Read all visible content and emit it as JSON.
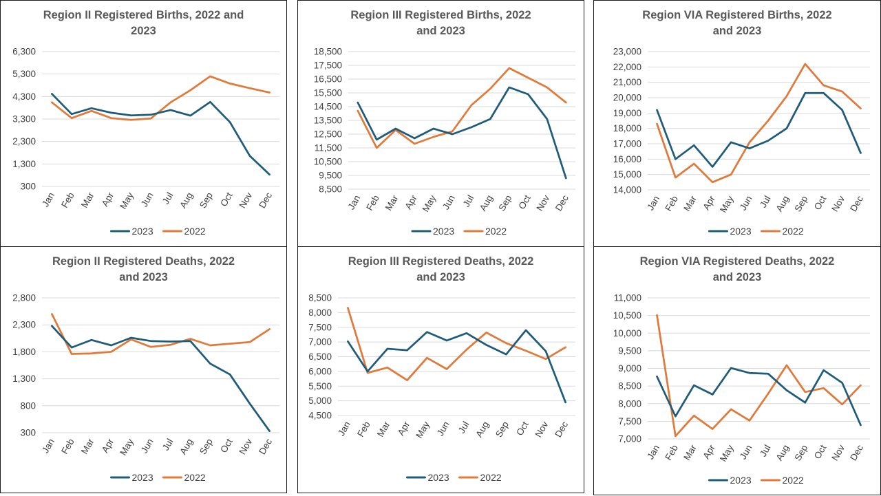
{
  "colors": {
    "series_2023": "#1f5c7a",
    "series_2022": "#e07a3a",
    "grid": "#d9d9d9",
    "text": "#404040",
    "title": "#595959"
  },
  "chart_data": [
    {
      "type": "line",
      "title": "Region II  Registered Births, 2022 and 2023",
      "title_lines": [
        "Region II  Registered Births, 2022 and",
        "2023"
      ],
      "categories": [
        "Jan",
        "Feb",
        "Mar",
        "Apr",
        "May",
        "Jun",
        "Jul",
        "Aug",
        "Sep",
        "Oct",
        "Nov",
        "Dec"
      ],
      "y_ticks": [
        "6,300",
        "5,300",
        "4,300",
        "3,300",
        "2,300",
        "1,300",
        "300"
      ],
      "ylim": [
        300,
        6300
      ],
      "grid": true,
      "legend_position": "bottom",
      "series": [
        {
          "name": "2023",
          "values": [
            4420,
            3520,
            3780,
            3580,
            3460,
            3490,
            3700,
            3450,
            4060,
            3160,
            1660,
            830
          ]
        },
        {
          "name": "2022",
          "values": [
            4040,
            3340,
            3660,
            3340,
            3260,
            3320,
            4040,
            4580,
            5200,
            4880,
            4670,
            4480
          ]
        }
      ]
    },
    {
      "type": "line",
      "title": "Region III  Registered Births, 2022 and 2023",
      "title_lines": [
        "Region III  Registered Births, 2022",
        "and 2023"
      ],
      "categories": [
        "Jan",
        "Feb",
        "Mar",
        "Apr",
        "May",
        "Jun",
        "Jul",
        "Aug",
        "Sep",
        "Oct",
        "Nov",
        "Dec"
      ],
      "y_ticks": [
        "18,500",
        "17,500",
        "16,500",
        "15,500",
        "14,500",
        "13,500",
        "12,500",
        "11,500",
        "10,500",
        "9,500",
        "8,500"
      ],
      "ylim": [
        8500,
        18500
      ],
      "grid": true,
      "legend_position": "bottom",
      "series": [
        {
          "name": "2023",
          "values": [
            14800,
            12100,
            12900,
            12200,
            12900,
            12500,
            13000,
            13600,
            15900,
            15400,
            13600,
            9300
          ]
        },
        {
          "name": "2022",
          "values": [
            14200,
            11500,
            12800,
            11800,
            12300,
            12700,
            14600,
            15800,
            17300,
            16600,
            15900,
            14800
          ]
        }
      ]
    },
    {
      "type": "line",
      "title": "Region VIA  Registered Births, 2022 and 2023",
      "title_lines": [
        "Region VIA  Registered Births, 2022",
        "and 2023"
      ],
      "categories": [
        "Jan",
        "Feb",
        "Mar",
        "Apr",
        "May",
        "Jun",
        "Jul",
        "Aug",
        "Sep",
        "Oct",
        "Nov",
        "Dec"
      ],
      "y_ticks": [
        "23,000",
        "22,000",
        "21,000",
        "20,000",
        "19,000",
        "18,000",
        "17,000",
        "16,000",
        "15,000",
        "14,000"
      ],
      "ylim": [
        14000,
        23000
      ],
      "grid": true,
      "legend_position": "bottom",
      "series": [
        {
          "name": "2023",
          "values": [
            19200,
            16000,
            16900,
            15500,
            17100,
            16700,
            17200,
            18000,
            20300,
            20300,
            19200,
            16400
          ]
        },
        {
          "name": "2022",
          "values": [
            18300,
            14800,
            15700,
            14500,
            15000,
            17100,
            18500,
            20100,
            22200,
            20800,
            20400,
            19300
          ]
        }
      ]
    },
    {
      "type": "line",
      "title": "Region II  Registered Deaths, 2022 and 2023",
      "title_lines": [
        "Region II  Registered Deaths, 2022",
        "and 2023"
      ],
      "categories": [
        "Jan",
        "Feb",
        "Mar",
        "Apr",
        "May",
        "Jun",
        "Jul",
        "Aug",
        "Sep",
        "Oct",
        "Nov",
        "Dec"
      ],
      "y_ticks": [
        "2,800",
        "2,300",
        "1,800",
        "1,300",
        "800",
        "300"
      ],
      "ylim": [
        300,
        2800
      ],
      "grid": true,
      "legend_position": "bottom",
      "series": [
        {
          "name": "2023",
          "values": [
            2280,
            1880,
            2020,
            1920,
            2060,
            2000,
            1990,
            2000,
            1580,
            1380,
            840,
            330
          ]
        },
        {
          "name": "2022",
          "values": [
            2500,
            1760,
            1770,
            1800,
            2030,
            1890,
            1930,
            2040,
            1920,
            1950,
            1980,
            2220
          ]
        }
      ]
    },
    {
      "type": "line",
      "title": "Region III  Registered Deaths, 2022 and 2023",
      "title_lines": [
        "Region III  Registered Deaths, 2022",
        "and 2023"
      ],
      "categories": [
        "Jan",
        "Feb",
        "Mar",
        "Apr",
        "May",
        "Jun",
        "Jul",
        "Aug",
        "Sep",
        "Oct",
        "Nov",
        "Dec"
      ],
      "y_ticks": [
        "8,500",
        "8,000",
        "7,500",
        "7,000",
        "6,500",
        "6,000",
        "5,500",
        "5,000",
        "4,500"
      ],
      "ylim": [
        4500,
        8500
      ],
      "grid": true,
      "legend_position": "bottom",
      "series": [
        {
          "name": "2023",
          "values": [
            7020,
            6000,
            6770,
            6720,
            7340,
            7050,
            7300,
            6900,
            6580,
            7400,
            6690,
            4950
          ]
        },
        {
          "name": "2022",
          "values": [
            8160,
            5950,
            6130,
            5700,
            6460,
            6080,
            6740,
            7320,
            6960,
            6700,
            6420,
            6820
          ]
        }
      ]
    },
    {
      "type": "line",
      "title": "Region VIA  Registered Deaths, 2022 and 2023",
      "title_lines": [
        "Region VIA  Registered Deaths, 2022",
        "and 2023"
      ],
      "categories": [
        "Jan",
        "Feb",
        "Mar",
        "Apr",
        "May",
        "Jun",
        "Jul",
        "Aug",
        "Sep",
        "Oct",
        "Nov",
        "Dec"
      ],
      "y_ticks": [
        "11,000",
        "10,500",
        "10,000",
        "9,500",
        "9,000",
        "8,500",
        "8,000",
        "7,500",
        "7,000"
      ],
      "ylim": [
        7000,
        11000
      ],
      "grid": true,
      "legend_position": "bottom",
      "series": [
        {
          "name": "2023",
          "values": [
            8770,
            7640,
            8520,
            8260,
            9010,
            8870,
            8850,
            8380,
            8030,
            8950,
            8590,
            7390
          ]
        },
        {
          "name": "2022",
          "values": [
            10510,
            7080,
            7660,
            7280,
            7840,
            7520,
            8280,
            9090,
            8330,
            8440,
            7980,
            8520
          ]
        }
      ]
    }
  ]
}
